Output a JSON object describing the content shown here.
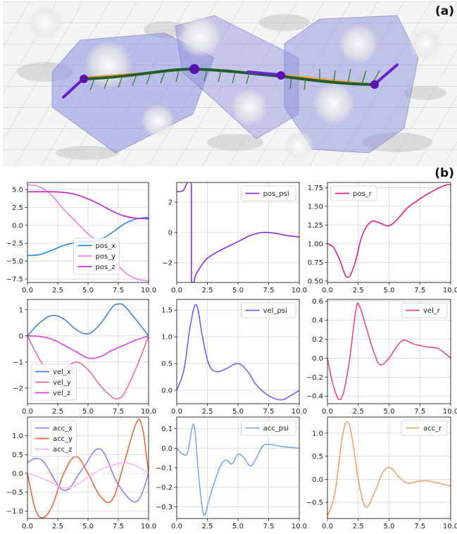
{
  "panel_labels": {
    "a": "(a)",
    "b": "(b)"
  },
  "colors": {
    "pos_x": "#1e88e5",
    "pos_y": "#f07ef0",
    "pos_z": "#d01fd0",
    "pos_psi": "#8a2be2",
    "pos_r": "#e0208a",
    "vel_x": "#4a7ff0",
    "vel_y": "#f06aa0",
    "vel_z": "#e040e0",
    "vel_psi": "#7b5cf0",
    "vel_r": "#e84a7a",
    "acc_x": "#9a7cf0",
    "acc_y": "#e8693a",
    "acc_z": "#f8b8f0",
    "acc_psi": "#7aa6ec",
    "acc_r": "#f4a070"
  },
  "chart_data": [
    {
      "type": "line",
      "xlim": [
        0,
        10
      ],
      "ylim": [
        -8.0,
        6.0
      ],
      "xticks": [
        0.0,
        2.5,
        5.0,
        7.5,
        10.0
      ],
      "xtick_labels": [
        "0.0",
        "2.5",
        "5.0",
        "7.5",
        "10.0"
      ],
      "yticks": [
        5.0,
        2.5,
        0.0,
        -2.5,
        -5.0,
        -7.5
      ],
      "ytick_labels": [
        "5.0",
        "2.5",
        "0.0",
        "−2.5",
        "−5.0",
        "−7.5"
      ],
      "grid": true,
      "legend": "bottom-center",
      "series": [
        {
          "name": "pos_x",
          "color_key": "pos_x",
          "x": [
            0,
            1,
            2,
            3,
            4,
            5,
            6,
            7,
            8,
            9,
            10
          ],
          "y": [
            -4.2,
            -4.1,
            -3.5,
            -2.8,
            -2.4,
            -2.3,
            -2.0,
            -1.0,
            0.2,
            0.9,
            1.1
          ]
        },
        {
          "name": "pos_y",
          "color_key": "pos_y",
          "x": [
            0,
            1,
            2,
            3,
            4,
            5,
            6,
            7,
            8,
            9,
            10
          ],
          "y": [
            5.7,
            5.4,
            4.2,
            2.2,
            0.5,
            -1.2,
            -2.5,
            -4.5,
            -6.5,
            -7.5,
            -7.8
          ]
        },
        {
          "name": "pos_z",
          "color_key": "pos_z",
          "x": [
            0,
            1,
            2,
            3,
            4,
            5,
            6,
            7,
            8,
            9,
            10
          ],
          "y": [
            4.7,
            4.7,
            4.7,
            4.6,
            4.3,
            3.7,
            2.9,
            2.0,
            1.3,
            1.0,
            0.9
          ]
        }
      ]
    },
    {
      "type": "line",
      "xlim": [
        0,
        10
      ],
      "ylim": [
        -3.3,
        3.3
      ],
      "xticks": [
        0.0,
        2.5,
        5.0,
        7.5,
        10.0
      ],
      "xtick_labels": [
        "0.0",
        "2.5",
        "5.0",
        "7.5",
        "10.0"
      ],
      "yticks": [
        2,
        0,
        -2
      ],
      "ytick_labels": [
        "2",
        "0",
        "−2"
      ],
      "grid": true,
      "legend": "top-right",
      "series": [
        {
          "name": "pos_psi",
          "color_key": "pos_psi",
          "x": [
            0,
            0.5,
            1.2,
            1.2,
            1.6,
            2.0,
            2.5,
            3.5,
            5.0,
            6.0,
            7.0,
            8.0,
            9.0,
            10.0
          ],
          "y": [
            2.7,
            2.75,
            3.1,
            -3.1,
            -2.7,
            -2.2,
            -1.7,
            -1.2,
            -0.6,
            -0.2,
            0.0,
            -0.05,
            -0.2,
            -0.3
          ]
        }
      ]
    },
    {
      "type": "line",
      "xlim": [
        0,
        10
      ],
      "ylim": [
        0.48,
        1.82
      ],
      "xticks": [
        0.0,
        2.5,
        5.0,
        7.5,
        10.0
      ],
      "xtick_labels": [
        "0.0",
        "2.5",
        "5.0",
        "7.5",
        "10.0"
      ],
      "yticks": [
        1.75,
        1.5,
        1.25,
        1.0,
        0.75,
        0.5
      ],
      "ytick_labels": [
        "1.75",
        "1.50",
        "1.25",
        "1.00",
        "0.75",
        "0.50"
      ],
      "grid": true,
      "legend": "top-left",
      "series": [
        {
          "name": "pos_r",
          "color_key": "pos_r",
          "x": [
            0,
            0.5,
            1.0,
            1.6,
            2.2,
            2.8,
            3.5,
            4.2,
            5.0,
            5.8,
            6.5,
            7.5,
            8.5,
            9.5,
            10.0
          ],
          "y": [
            1.0,
            0.95,
            0.78,
            0.55,
            0.72,
            1.1,
            1.29,
            1.28,
            1.24,
            1.35,
            1.48,
            1.6,
            1.7,
            1.78,
            1.79
          ]
        }
      ]
    },
    {
      "type": "line",
      "xlim": [
        0,
        10
      ],
      "ylim": [
        -2.6,
        1.4
      ],
      "xticks": [
        0.0,
        2.5,
        5.0,
        7.5,
        10.0
      ],
      "xtick_labels": [
        "0.0",
        "2.5",
        "5.0",
        "7.5",
        "10.0"
      ],
      "yticks": [
        1,
        0,
        -1,
        -2
      ],
      "ytick_labels": [
        "1",
        "0",
        "−1",
        "−2"
      ],
      "grid": true,
      "legend": "bottom-left",
      "series": [
        {
          "name": "vel_x",
          "color_key": "vel_x",
          "x": [
            0,
            1,
            2,
            3,
            4,
            5,
            6,
            7,
            7.5,
            8,
            9,
            10
          ],
          "y": [
            0.0,
            0.5,
            0.78,
            0.65,
            0.25,
            0.08,
            0.45,
            1.1,
            1.22,
            1.15,
            0.6,
            0.0
          ]
        },
        {
          "name": "vel_y",
          "color_key": "vel_y",
          "x": [
            0,
            1,
            2,
            3,
            4,
            5,
            6,
            7,
            7.5,
            8,
            9,
            10
          ],
          "y": [
            0.0,
            -0.9,
            -1.5,
            -1.3,
            -1.0,
            -1.3,
            -1.9,
            -2.35,
            -2.4,
            -2.2,
            -1.2,
            0.0
          ]
        },
        {
          "name": "vel_z",
          "color_key": "vel_z",
          "x": [
            0,
            1,
            2,
            3,
            4,
            5,
            6,
            7,
            8,
            9,
            10
          ],
          "y": [
            0.0,
            -0.02,
            -0.12,
            -0.35,
            -0.6,
            -0.85,
            -0.8,
            -0.55,
            -0.35,
            -0.15,
            0.0
          ]
        }
      ]
    },
    {
      "type": "line",
      "xlim": [
        0,
        10
      ],
      "ylim": [
        -0.25,
        1.7
      ],
      "xticks": [
        0.0,
        2.5,
        5.0,
        7.5,
        10.0
      ],
      "xtick_labels": [
        "0.0",
        "2.5",
        "5.0",
        "7.5",
        "10.0"
      ],
      "yticks": [
        1.5,
        1.0,
        0.5,
        0.0
      ],
      "ytick_labels": [
        "1.5",
        "1.0",
        "0.5",
        "0.0"
      ],
      "grid": true,
      "legend": "top-right",
      "series": [
        {
          "name": "vel_psi",
          "color_key": "vel_psi",
          "x": [
            0,
            0.6,
            1.1,
            1.6,
            2.1,
            2.6,
            3.2,
            4.0,
            5.0,
            5.8,
            6.5,
            7.5,
            8.5,
            9.3,
            10.0
          ],
          "y": [
            0.0,
            0.4,
            1.2,
            1.6,
            1.0,
            0.5,
            0.35,
            0.4,
            0.5,
            0.35,
            0.1,
            -0.1,
            -0.18,
            -0.1,
            0.0
          ]
        }
      ]
    },
    {
      "type": "line",
      "xlim": [
        0,
        10
      ],
      "ylim": [
        -0.48,
        0.62
      ],
      "xticks": [
        0.0,
        2.5,
        5.0,
        7.5,
        10.0
      ],
      "xtick_labels": [
        "0.0",
        "2.5",
        "5.0",
        "7.5",
        "10.0"
      ],
      "yticks": [
        0.6,
        0.4,
        0.2,
        0.0,
        -0.2,
        -0.4
      ],
      "ytick_labels": [
        "0.6",
        "0.4",
        "0.2",
        "0.0",
        "−0.2",
        "−0.4"
      ],
      "grid": true,
      "legend": "top-right",
      "series": [
        {
          "name": "vel_r",
          "color_key": "vel_r",
          "x": [
            0,
            0.5,
            1.1,
            1.7,
            2.3,
            2.6,
            3.2,
            3.8,
            4.3,
            5.0,
            5.6,
            6.2,
            7.0,
            8.0,
            9.0,
            10.0
          ],
          "y": [
            0.0,
            -0.3,
            -0.43,
            -0.1,
            0.5,
            0.55,
            0.3,
            0.05,
            -0.07,
            0.0,
            0.12,
            0.19,
            0.15,
            0.12,
            0.1,
            0.0
          ]
        }
      ]
    },
    {
      "type": "line",
      "xlim": [
        0,
        10
      ],
      "ylim": [
        -1.2,
        1.5
      ],
      "xticks": [
        0.0,
        2.5,
        5.0,
        7.5,
        10.0
      ],
      "xtick_labels": [
        "0.0",
        "2.5",
        "5.0",
        "7.5",
        "10.0"
      ],
      "yticks": [
        1.0,
        0.5,
        0.0,
        -0.5,
        -1.0
      ],
      "ytick_labels": [
        "1.0",
        "0.5",
        "0.0",
        "−0.5",
        "−1.0"
      ],
      "grid": true,
      "legend": "top-left",
      "series": [
        {
          "name": "acc_x",
          "color_key": "acc_x",
          "x": [
            0,
            1.2,
            3.0,
            4.5,
            6.0,
            7.5,
            9.0,
            10.0
          ],
          "y": [
            0.3,
            0.35,
            -0.45,
            0.1,
            0.65,
            -0.3,
            -0.75,
            0.0
          ]
        },
        {
          "name": "acc_y",
          "color_key": "acc_y",
          "x": [
            0,
            0.6,
            1.2,
            2.0,
            3.0,
            4.0,
            5.0,
            6.0,
            7.0,
            8.0,
            9.0,
            9.5,
            10.0
          ],
          "y": [
            0.0,
            -0.9,
            -1.18,
            -0.9,
            0.0,
            0.45,
            0.0,
            -0.6,
            -0.7,
            0.3,
            1.35,
            1.2,
            0.0
          ]
        },
        {
          "name": "acc_z",
          "color_key": "acc_z",
          "x": [
            0,
            1,
            2,
            3,
            4,
            5,
            6,
            7,
            8,
            9,
            10
          ],
          "y": [
            0.0,
            -0.1,
            -0.25,
            -0.38,
            -0.32,
            -0.1,
            0.1,
            0.22,
            0.28,
            0.2,
            0.0
          ]
        }
      ]
    },
    {
      "type": "line",
      "xlim": [
        0,
        10
      ],
      "ylim": [
        -0.36,
        0.16
      ],
      "xticks": [
        0.0,
        2.5,
        5.0,
        7.5,
        10.0
      ],
      "xtick_labels": [
        "0.0",
        "2.5",
        "5.0",
        "7.5",
        "10.0"
      ],
      "yticks": [
        0.1,
        0.0,
        -0.1,
        -0.2,
        -0.3
      ],
      "ytick_labels": [
        "0.1",
        "0.0",
        "−0.1",
        "−0.2",
        "−0.3"
      ],
      "grid": true,
      "legend": "top-right",
      "series": [
        {
          "name": "acc_psi",
          "color_key": "acc_psi",
          "x": [
            0,
            0.5,
            0.9,
            1.4,
            1.8,
            2.2,
            2.6,
            3.0,
            3.5,
            4.0,
            4.5,
            5.0,
            5.5,
            6.0,
            6.5,
            7.0,
            7.5,
            8.5,
            10.0
          ],
          "y": [
            0.0,
            -0.03,
            -0.02,
            0.12,
            -0.15,
            -0.34,
            -0.27,
            -0.19,
            -0.1,
            -0.06,
            -0.08,
            -0.03,
            -0.05,
            -0.09,
            -0.05,
            0.01,
            0.02,
            0.01,
            0.0
          ]
        }
      ]
    },
    {
      "type": "line",
      "xlim": [
        0,
        10
      ],
      "ylim": [
        -0.85,
        1.35
      ],
      "xticks": [
        0.0,
        2.5,
        5.0,
        7.5,
        10.0
      ],
      "xtick_labels": [
        "0.0",
        "2.5",
        "5.0",
        "7.5",
        "10.0"
      ],
      "yticks": [
        1.0,
        0.5,
        0.0,
        -0.5
      ],
      "ytick_labels": [
        "1.0",
        "0.5",
        "0.0",
        "−0.5"
      ],
      "grid": true,
      "legend": "top-right",
      "series": [
        {
          "name": "acc_r",
          "color_key": "acc_r",
          "x": [
            0,
            0.6,
            1.2,
            1.6,
            2.0,
            2.5,
            3.1,
            3.8,
            4.5,
            5.1,
            5.8,
            6.5,
            7.2,
            8.0,
            9.0,
            10.0
          ],
          "y": [
            -0.8,
            -0.3,
            0.9,
            1.25,
            0.9,
            0.0,
            -0.6,
            -0.3,
            0.15,
            0.25,
            0.05,
            -0.08,
            -0.05,
            -0.03,
            -0.08,
            -0.15
          ]
        }
      ]
    }
  ]
}
